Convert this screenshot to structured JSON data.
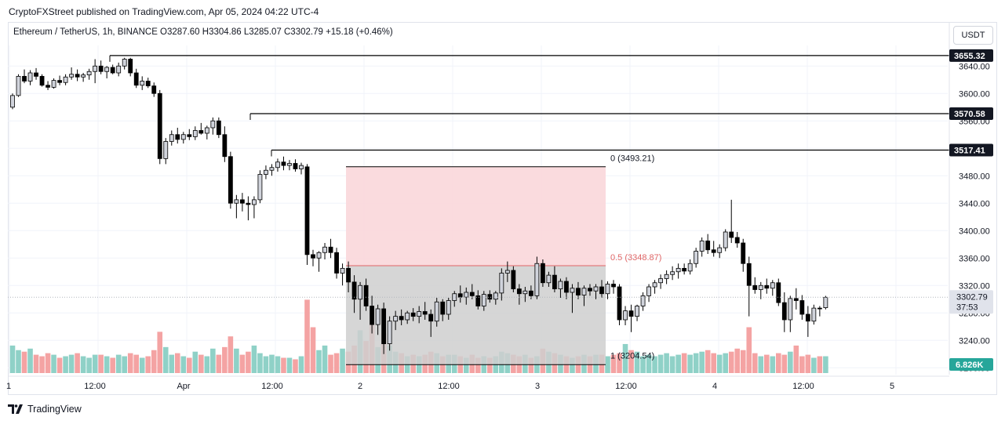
{
  "header": {
    "published": "CryptoFXStreet published on TradingView.com, Apr 05, 2024 04:22 UTC-4",
    "symbol_line": "Ethereum / TetherUS, 1h, BINANCE  O3287.60  H3304.86  L3285.07  C3302.79  +15.18 (+0.46%)"
  },
  "currency_button": "USDT",
  "brand": "TradingView",
  "colors": {
    "up_body": "#d1d4dc",
    "down_body": "#000000",
    "wick": "#000000",
    "vol_up": "#8fd1c7",
    "vol_down": "#f4a3a3",
    "fib_top_zone": "#f9d7da",
    "fib_bottom_zone": "#cfcfcf",
    "fib_mid_line": "#e06666",
    "label_bg": "#131722",
    "vol_label_bg": "#26a69a"
  },
  "chart_data": {
    "type": "candlestick",
    "symbol": "ETH/USDT",
    "timeframe": "1h",
    "exchange": "BINANCE",
    "last": {
      "open": 3287.6,
      "high": 3304.86,
      "low": 3285.07,
      "close": 3302.79,
      "change": 15.18,
      "change_pct": 0.46
    },
    "price_axis": {
      "min": 3190,
      "max": 3670,
      "ticks": [
        3200,
        3240,
        3280,
        3320,
        3360,
        3400,
        3440,
        3480,
        3520,
        3560,
        3600,
        3640
      ]
    },
    "time_axis_labels": [
      "1",
      "12:00",
      "Apr",
      "12:00",
      "2",
      "12:00",
      "3",
      "12:00",
      "4",
      "12:00",
      "5"
    ],
    "levels": [
      {
        "label": "3655.32",
        "value": 3655.32
      },
      {
        "label": "3570.58",
        "value": 3570.58
      },
      {
        "label": "3517.41",
        "value": 3517.41
      }
    ],
    "fib": {
      "top": {
        "label": "0 (3493.21)",
        "value": 3493.21
      },
      "mid": {
        "label": "0.5 (3348.87)",
        "value": 3348.87
      },
      "bottom": {
        "label": "1 (3204.54)",
        "value": 3204.54
      }
    },
    "last_price_label": "3302.79",
    "countdown": "37:53",
    "volume_label": "6.826K",
    "candles": [
      [
        3580,
        3600,
        3577,
        3597
      ],
      [
        3597,
        3628,
        3595,
        3625
      ],
      [
        3625,
        3635,
        3615,
        3618
      ],
      [
        3618,
        3634,
        3612,
        3630
      ],
      [
        3630,
        3637,
        3620,
        3625
      ],
      [
        3625,
        3628,
        3610,
        3612
      ],
      [
        3612,
        3618,
        3605,
        3609
      ],
      [
        3609,
        3622,
        3607,
        3619
      ],
      [
        3619,
        3626,
        3612,
        3616
      ],
      [
        3616,
        3628,
        3612,
        3624
      ],
      [
        3624,
        3638,
        3620,
        3628
      ],
      [
        3628,
        3635,
        3618,
        3624
      ],
      [
        3624,
        3630,
        3617,
        3627
      ],
      [
        3627,
        3636,
        3620,
        3632
      ],
      [
        3632,
        3650,
        3615,
        3640
      ],
      [
        3640,
        3648,
        3628,
        3632
      ],
      [
        3632,
        3640,
        3622,
        3638
      ],
      [
        3638,
        3642,
        3628,
        3630
      ],
      [
        3630,
        3645,
        3625,
        3640
      ],
      [
        3640,
        3652,
        3635,
        3650
      ],
      [
        3650,
        3652,
        3625,
        3630
      ],
      [
        3630,
        3636,
        3608,
        3612
      ],
      [
        3612,
        3625,
        3605,
        3618
      ],
      [
        3618,
        3623,
        3608,
        3611
      ],
      [
        3611,
        3616,
        3595,
        3600
      ],
      [
        3600,
        3605,
        3497,
        3505
      ],
      [
        3505,
        3535,
        3497,
        3530
      ],
      [
        3530,
        3546,
        3524,
        3540
      ],
      [
        3540,
        3550,
        3527,
        3533
      ],
      [
        3533,
        3544,
        3527,
        3540
      ],
      [
        3540,
        3548,
        3532,
        3537
      ],
      [
        3537,
        3552,
        3532,
        3546
      ],
      [
        3546,
        3557,
        3540,
        3542
      ],
      [
        3542,
        3553,
        3533,
        3550
      ],
      [
        3550,
        3565,
        3540,
        3560
      ],
      [
        3560,
        3565,
        3535,
        3540
      ],
      [
        3540,
        3552,
        3500,
        3508
      ],
      [
        3508,
        3515,
        3432,
        3440
      ],
      [
        3440,
        3452,
        3418,
        3445
      ],
      [
        3445,
        3455,
        3428,
        3440
      ],
      [
        3440,
        3450,
        3415,
        3438
      ],
      [
        3438,
        3450,
        3418,
        3445
      ],
      [
        3445,
        3488,
        3440,
        3482
      ],
      [
        3482,
        3495,
        3475,
        3488
      ],
      [
        3488,
        3497,
        3480,
        3492
      ],
      [
        3492,
        3505,
        3486,
        3500
      ],
      [
        3500,
        3508,
        3488,
        3495
      ],
      [
        3495,
        3503,
        3488,
        3498
      ],
      [
        3498,
        3504,
        3486,
        3490
      ],
      [
        3490,
        3499,
        3482,
        3495
      ],
      [
        3493,
        3497,
        3350,
        3365
      ],
      [
        3365,
        3372,
        3348,
        3360
      ],
      [
        3360,
        3370,
        3340,
        3368
      ],
      [
        3368,
        3382,
        3358,
        3376
      ],
      [
        3376,
        3388,
        3360,
        3368
      ],
      [
        3368,
        3375,
        3330,
        3338
      ],
      [
        3338,
        3352,
        3320,
        3345
      ],
      [
        3345,
        3355,
        3310,
        3325
      ],
      [
        3325,
        3335,
        3280,
        3300
      ],
      [
        3300,
        3325,
        3270,
        3320
      ],
      [
        3320,
        3330,
        3283,
        3290
      ],
      [
        3290,
        3305,
        3250,
        3263
      ],
      [
        3263,
        3292,
        3248,
        3286
      ],
      [
        3286,
        3295,
        3220,
        3235
      ],
      [
        3235,
        3275,
        3225,
        3268
      ],
      [
        3268,
        3283,
        3255,
        3275
      ],
      [
        3275,
        3285,
        3262,
        3270
      ],
      [
        3270,
        3283,
        3264,
        3280
      ],
      [
        3280,
        3287,
        3268,
        3275
      ],
      [
        3275,
        3290,
        3265,
        3282
      ],
      [
        3282,
        3296,
        3270,
        3278
      ],
      [
        3278,
        3285,
        3245,
        3268
      ],
      [
        3268,
        3302,
        3260,
        3296
      ],
      [
        3296,
        3300,
        3268,
        3278
      ],
      [
        3278,
        3302,
        3270,
        3298
      ],
      [
        3298,
        3312,
        3289,
        3308
      ],
      [
        3308,
        3320,
        3295,
        3303
      ],
      [
        3303,
        3317,
        3292,
        3310
      ],
      [
        3310,
        3322,
        3300,
        3305
      ],
      [
        3305,
        3313,
        3285,
        3290
      ],
      [
        3290,
        3312,
        3283,
        3307
      ],
      [
        3307,
        3313,
        3295,
        3300
      ],
      [
        3300,
        3312,
        3292,
        3309
      ],
      [
        3309,
        3345,
        3298,
        3338
      ],
      [
        3338,
        3355,
        3325,
        3342
      ],
      [
        3342,
        3348,
        3310,
        3315
      ],
      [
        3315,
        3322,
        3292,
        3308
      ],
      [
        3308,
        3318,
        3296,
        3312
      ],
      [
        3312,
        3320,
        3300,
        3305
      ],
      [
        3305,
        3362,
        3300,
        3352
      ],
      [
        3352,
        3358,
        3318,
        3324
      ],
      [
        3324,
        3340,
        3318,
        3335
      ],
      [
        3335,
        3348,
        3310,
        3315
      ],
      [
        3315,
        3330,
        3302,
        3326
      ],
      [
        3326,
        3332,
        3300,
        3310
      ],
      [
        3310,
        3322,
        3280,
        3316
      ],
      [
        3316,
        3325,
        3300,
        3306
      ],
      [
        3306,
        3320,
        3290,
        3316
      ],
      [
        3316,
        3322,
        3305,
        3312
      ],
      [
        3312,
        3322,
        3300,
        3318
      ],
      [
        3318,
        3328,
        3302,
        3308
      ],
      [
        3308,
        3326,
        3300,
        3322
      ],
      [
        3322,
        3328,
        3308,
        3318
      ],
      [
        3318,
        3322,
        3262,
        3270
      ],
      [
        3270,
        3290,
        3262,
        3283
      ],
      [
        3283,
        3292,
        3252,
        3275
      ],
      [
        3275,
        3292,
        3268,
        3290
      ],
      [
        3290,
        3310,
        3283,
        3305
      ],
      [
        3305,
        3322,
        3296,
        3318
      ],
      [
        3318,
        3328,
        3308,
        3324
      ],
      [
        3324,
        3336,
        3315,
        3330
      ],
      [
        3330,
        3342,
        3322,
        3336
      ],
      [
        3336,
        3348,
        3328,
        3340
      ],
      [
        3340,
        3352,
        3330,
        3345
      ],
      [
        3345,
        3352,
        3336,
        3341
      ],
      [
        3341,
        3358,
        3336,
        3352
      ],
      [
        3352,
        3375,
        3346,
        3370
      ],
      [
        3370,
        3390,
        3362,
        3385
      ],
      [
        3385,
        3395,
        3366,
        3372
      ],
      [
        3372,
        3385,
        3362,
        3368
      ],
      [
        3368,
        3380,
        3360,
        3375
      ],
      [
        3375,
        3402,
        3370,
        3398
      ],
      [
        3398,
        3445,
        3382,
        3390
      ],
      [
        3390,
        3398,
        3375,
        3382
      ],
      [
        3382,
        3388,
        3340,
        3352
      ],
      [
        3352,
        3362,
        3275,
        3320
      ],
      [
        3320,
        3332,
        3308,
        3314
      ],
      [
        3314,
        3325,
        3300,
        3320
      ],
      [
        3320,
        3330,
        3308,
        3316
      ],
      [
        3316,
        3328,
        3305,
        3324
      ],
      [
        3324,
        3330,
        3290,
        3295
      ],
      [
        3295,
        3310,
        3252,
        3270
      ],
      [
        3270,
        3305,
        3252,
        3301
      ],
      [
        3301,
        3316,
        3285,
        3298
      ],
      [
        3298,
        3306,
        3270,
        3278
      ],
      [
        3278,
        3290,
        3245,
        3268
      ],
      [
        3268,
        3292,
        3263,
        3287
      ],
      [
        3287,
        3290,
        3275,
        3286
      ],
      [
        3287.6,
        3304.86,
        3285.07,
        3302.79
      ]
    ],
    "volumes": [
      18,
      15,
      14,
      16,
      12,
      11,
      13,
      12,
      10,
      11,
      12,
      13,
      11,
      10,
      12,
      12,
      11,
      10,
      12,
      11,
      13,
      12,
      10,
      11,
      15,
      27,
      17,
      12,
      13,
      11,
      10,
      14,
      12,
      11,
      16,
      12,
      17,
      24,
      16,
      12,
      14,
      18,
      13,
      11,
      12,
      11,
      10,
      10,
      9,
      11,
      48,
      30,
      15,
      18,
      12,
      13,
      16,
      14,
      18,
      28,
      21,
      32,
      17,
      26,
      18,
      14,
      13,
      11,
      12,
      11,
      12,
      14,
      13,
      11,
      12,
      12,
      11,
      10,
      12,
      10,
      11,
      10,
      11,
      14,
      13,
      12,
      11,
      12,
      10,
      11,
      16,
      14,
      13,
      12,
      11,
      10,
      11,
      12,
      11,
      12,
      12,
      11,
      12,
      13,
      19,
      15,
      14,
      11,
      12,
      11,
      12,
      13,
      11,
      12,
      13,
      12,
      13,
      14,
      15,
      13,
      12,
      13,
      14,
      16,
      15,
      30,
      13,
      11,
      12,
      11,
      13,
      12,
      14,
      18,
      11,
      12,
      10,
      11,
      11,
      8
    ]
  }
}
